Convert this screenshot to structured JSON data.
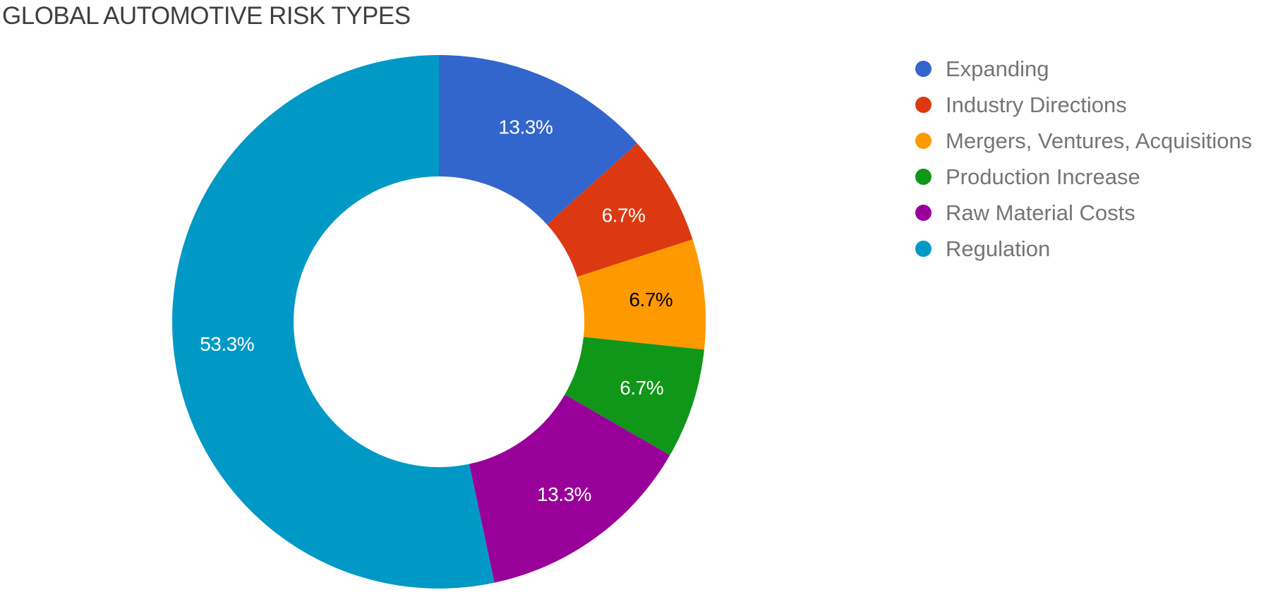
{
  "page": {
    "background_color": "#ffffff",
    "title_color": "#3f3f3f",
    "legend_text_color": "#757575"
  },
  "chart_data": {
    "type": "pie",
    "subtype": "donut",
    "title": "GLOBAL AUTOMOTIVE RISK TYPES",
    "legend_position": "right",
    "start_angle_deg": 0,
    "direction": "clockwise",
    "inner_radius_ratio": 0.545,
    "total": 15,
    "series": [
      {
        "label": "Expanding",
        "value": 2,
        "percent": 13.3,
        "percent_label": "13.3%",
        "color": "#3366CC",
        "label_color": "#ffffff"
      },
      {
        "label": "Industry Directions",
        "value": 1,
        "percent": 6.7,
        "percent_label": "6.7%",
        "color": "#DC3912",
        "label_color": "#ffffff"
      },
      {
        "label": "Mergers, Ventures, Acquisitions",
        "value": 1,
        "percent": 6.7,
        "percent_label": "6.7%",
        "color": "#FF9900",
        "label_color": "#000000"
      },
      {
        "label": "Production Increase",
        "value": 1,
        "percent": 6.7,
        "percent_label": "6.7%",
        "color": "#109618",
        "label_color": "#ffffff"
      },
      {
        "label": "Raw Material Costs",
        "value": 2,
        "percent": 13.3,
        "percent_label": "13.3%",
        "color": "#990099",
        "label_color": "#ffffff"
      },
      {
        "label": "Regulation",
        "value": 8,
        "percent": 53.3,
        "percent_label": "53.3%",
        "color": "#0099C6",
        "label_color": "#ffffff"
      }
    ]
  }
}
